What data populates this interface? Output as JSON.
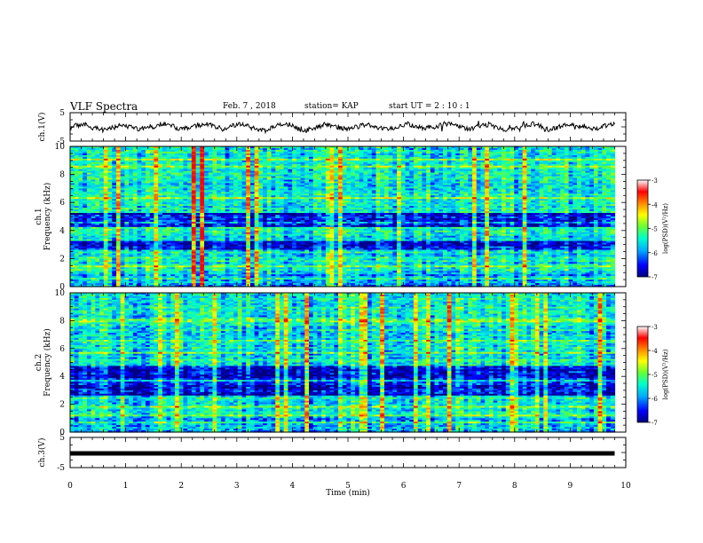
{
  "header": {
    "title": "VLF Spectra",
    "date": "Feb. 7 , 2018",
    "station": "station= KAP",
    "start": "start  UT =  2 : 10 : 1"
  },
  "chart_data": [
    {
      "type": "line",
      "panel": "ch1-waveform",
      "ylabel": "ch.1(V)",
      "ylim": [
        -5,
        5
      ],
      "ytick_labels": [
        "5",
        "-5"
      ],
      "xlim": [
        0,
        9.8
      ],
      "color": "#000000",
      "grid": false
    },
    {
      "type": "heatmap",
      "panel": "ch1-spectrogram",
      "ylabel": "ch.1\nFrequency  (kHz)",
      "ylim": [
        0,
        10
      ],
      "ytick_labels": [
        "0",
        "2",
        "4",
        "6",
        "8",
        "10"
      ],
      "xlim": [
        0,
        9.8
      ],
      "weak_bands_khz": [
        [
          2.6,
          3.3
        ],
        [
          4.2,
          5.2
        ]
      ],
      "colorbar": {
        "label": "log(PSD)(V²/Hz)",
        "range": [
          -7,
          -3
        ],
        "tick_labels": [
          "-3",
          "-4",
          "-5",
          "-6",
          "-7"
        ],
        "colors": [
          "#000080",
          "#0000ff",
          "#00aaff",
          "#00ffcc",
          "#66ff33",
          "#ffff00",
          "#ff8800",
          "#ff0000",
          "#ffffff"
        ]
      }
    },
    {
      "type": "heatmap",
      "panel": "ch2-spectrogram",
      "ylabel": "ch.2\nFrequency  (kHz)",
      "ylim": [
        0,
        10
      ],
      "ytick_labels": [
        "0",
        "2",
        "4",
        "6",
        "8",
        "10"
      ],
      "xlim": [
        0,
        9.8
      ],
      "weak_bands_khz": [
        [
          2.6,
          3.6
        ],
        [
          3.8,
          4.8
        ]
      ],
      "colorbar": {
        "label": "log(PSD)(V²/Hz)",
        "range": [
          -7,
          -3
        ],
        "tick_labels": [
          "-3",
          "-4",
          "-5",
          "-6",
          "-7"
        ],
        "colors": [
          "#000080",
          "#0000ff",
          "#00aaff",
          "#00ffcc",
          "#66ff33",
          "#ffff00",
          "#ff8800",
          "#ff0000",
          "#ffffff"
        ]
      }
    },
    {
      "type": "line",
      "panel": "ch3-waveform",
      "ylabel": "ch.3(V)",
      "ylim": [
        -5,
        5
      ],
      "ytick_labels": [
        "5",
        "-5"
      ],
      "xlim": [
        0,
        9.8
      ],
      "flat_value": 0,
      "color": "#000000"
    }
  ],
  "xaxis": {
    "label": "Time  (min)",
    "range": [
      0,
      10
    ],
    "tick_labels": [
      "0",
      "1",
      "2",
      "3",
      "4",
      "5",
      "6",
      "7",
      "8",
      "9",
      "10"
    ]
  }
}
